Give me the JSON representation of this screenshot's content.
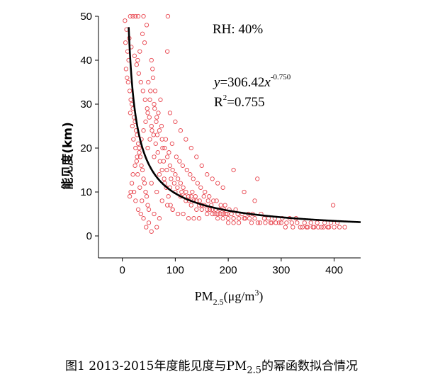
{
  "caption": {
    "prefix": "图1 2013-2015年度能见度与PM",
    "sub": "2.5",
    "suffix": "的幂函数拟合情况"
  },
  "chart_data": {
    "type": "scatter",
    "xlim": [
      -45,
      450
    ],
    "ylim": [
      -5,
      50
    ],
    "xticks": [
      0,
      100,
      200,
      300,
      400
    ],
    "yticks": [
      0,
      10,
      20,
      30,
      40,
      50
    ],
    "xlabel": {
      "main": "PM",
      "sub": "2.5",
      "unit": "(μg/m",
      "sup": "3",
      "close": ")"
    },
    "ylabel": "能见度(km)",
    "marker_color": "#e8454e",
    "fit_color": "#000000",
    "annotations": {
      "rh": "RH: 40%",
      "eq_y": "y",
      "eq_body": "=306.42",
      "eq_x": "x",
      "eq_exp": "-0.750",
      "r2_r": "R",
      "r2_sup": "2",
      "r2_val": "=0.755"
    },
    "fit": {
      "coefficient": 306.42,
      "exponent": -0.75,
      "x_range": [
        9,
        450
      ]
    },
    "points": [
      [
        5,
        49
      ],
      [
        8,
        47
      ],
      [
        6,
        44
      ],
      [
        10,
        42
      ],
      [
        12,
        40
      ],
      [
        7,
        38
      ],
      [
        9,
        36
      ],
      [
        11,
        35
      ],
      [
        14,
        33
      ],
      [
        16,
        31
      ],
      [
        18,
        30
      ],
      [
        20,
        29
      ],
      [
        15,
        28
      ],
      [
        22,
        27
      ],
      [
        24,
        26
      ],
      [
        19,
        25
      ],
      [
        26,
        24
      ],
      [
        28,
        23
      ],
      [
        21,
        22
      ],
      [
        30,
        21
      ],
      [
        25,
        20
      ],
      [
        32,
        19
      ],
      [
        34,
        18
      ],
      [
        27,
        17
      ],
      [
        36,
        16
      ],
      [
        38,
        15
      ],
      [
        29,
        14
      ],
      [
        40,
        13
      ],
      [
        42,
        12
      ],
      [
        33,
        11
      ],
      [
        44,
        10
      ],
      [
        46,
        9
      ],
      [
        37,
        8
      ],
      [
        48,
        7
      ],
      [
        50,
        6
      ],
      [
        13,
        45
      ],
      [
        17,
        43
      ],
      [
        23,
        41
      ],
      [
        27,
        39
      ],
      [
        31,
        37
      ],
      [
        35,
        35
      ],
      [
        39,
        33
      ],
      [
        43,
        31
      ],
      [
        47,
        29
      ],
      [
        51,
        27
      ],
      [
        55,
        25
      ],
      [
        59,
        23
      ],
      [
        63,
        21
      ],
      [
        67,
        19
      ],
      [
        71,
        17
      ],
      [
        75,
        15
      ],
      [
        79,
        13
      ],
      [
        83,
        11
      ],
      [
        87,
        9
      ],
      [
        91,
        7
      ],
      [
        95,
        6
      ],
      [
        60,
        30
      ],
      [
        65,
        27
      ],
      [
        70,
        24
      ],
      [
        75,
        22
      ],
      [
        80,
        20
      ],
      [
        85,
        18
      ],
      [
        90,
        16
      ],
      [
        95,
        15
      ],
      [
        100,
        14
      ],
      [
        105,
        13
      ],
      [
        110,
        12
      ],
      [
        115,
        11
      ],
      [
        120,
        10
      ],
      [
        125,
        9
      ],
      [
        130,
        9
      ],
      [
        135,
        8
      ],
      [
        140,
        8
      ],
      [
        145,
        7
      ],
      [
        150,
        7
      ],
      [
        155,
        7
      ],
      [
        160,
        6
      ],
      [
        165,
        6
      ],
      [
        170,
        6
      ],
      [
        175,
        5
      ],
      [
        180,
        5
      ],
      [
        185,
        5
      ],
      [
        190,
        5
      ],
      [
        195,
        5
      ],
      [
        200,
        4
      ],
      [
        210,
        4
      ],
      [
        220,
        4
      ],
      [
        230,
        4
      ],
      [
        240,
        4
      ],
      [
        250,
        4
      ],
      [
        260,
        3
      ],
      [
        270,
        3
      ],
      [
        280,
        3
      ],
      [
        290,
        3
      ],
      [
        300,
        3
      ],
      [
        310,
        3
      ],
      [
        320,
        3
      ],
      [
        330,
        3
      ],
      [
        340,
        2
      ],
      [
        350,
        2
      ],
      [
        360,
        2
      ],
      [
        370,
        2
      ],
      [
        380,
        2
      ],
      [
        390,
        2
      ],
      [
        400,
        2
      ],
      [
        410,
        2
      ],
      [
        420,
        2
      ],
      [
        398,
        7
      ],
      [
        210,
        15
      ],
      [
        255,
        13
      ],
      [
        230,
        10
      ],
      [
        250,
        8
      ],
      [
        180,
        12
      ],
      [
        190,
        11
      ],
      [
        160,
        14
      ],
      [
        170,
        13
      ],
      [
        150,
        16
      ],
      [
        140,
        18
      ],
      [
        130,
        20
      ],
      [
        120,
        22
      ],
      [
        110,
        24
      ],
      [
        100,
        26
      ],
      [
        90,
        28
      ],
      [
        85,
        42
      ],
      [
        15,
        50
      ],
      [
        20,
        50
      ],
      [
        25,
        50
      ],
      [
        30,
        50
      ],
      [
        40,
        50
      ],
      [
        46,
        48
      ],
      [
        86,
        50
      ],
      [
        55,
        40
      ],
      [
        58,
        36
      ],
      [
        62,
        33
      ],
      [
        52,
        31
      ],
      [
        48,
        28
      ],
      [
        44,
        26
      ],
      [
        40,
        24
      ],
      [
        36,
        22
      ],
      [
        32,
        20
      ],
      [
        28,
        18
      ],
      [
        24,
        16
      ],
      [
        20,
        14
      ],
      [
        18,
        12
      ],
      [
        16,
        10
      ],
      [
        14,
        9
      ],
      [
        60,
        18
      ],
      [
        70,
        14
      ],
      [
        80,
        12
      ],
      [
        90,
        11
      ],
      [
        100,
        10
      ],
      [
        110,
        9
      ],
      [
        120,
        8
      ],
      [
        130,
        7
      ],
      [
        140,
        6
      ],
      [
        150,
        6
      ],
      [
        160,
        5
      ],
      [
        170,
        5
      ],
      [
        180,
        4
      ],
      [
        190,
        4
      ],
      [
        200,
        3
      ],
      [
        210,
        3
      ],
      [
        220,
        3
      ],
      [
        55,
        12
      ],
      [
        65,
        10
      ],
      [
        75,
        8
      ],
      [
        85,
        7
      ],
      [
        95,
        6
      ],
      [
        105,
        5
      ],
      [
        115,
        5
      ],
      [
        125,
        4
      ],
      [
        135,
        4
      ],
      [
        145,
        4
      ],
      [
        60,
        5
      ],
      [
        70,
        4
      ],
      [
        50,
        3
      ],
      [
        65,
        2
      ],
      [
        55,
        1
      ],
      [
        45,
        2
      ],
      [
        40,
        4
      ],
      [
        35,
        5
      ],
      [
        30,
        6
      ],
      [
        25,
        8
      ],
      [
        22,
        10
      ],
      [
        48,
        20
      ],
      [
        52,
        22
      ],
      [
        56,
        24
      ],
      [
        64,
        26
      ],
      [
        68,
        28
      ],
      [
        72,
        31
      ],
      [
        76,
        20
      ],
      [
        82,
        22
      ],
      [
        88,
        19
      ],
      [
        94,
        21
      ],
      [
        102,
        18
      ],
      [
        108,
        17
      ],
      [
        114,
        16
      ],
      [
        122,
        15
      ],
      [
        128,
        14
      ],
      [
        134,
        13
      ],
      [
        142,
        12
      ],
      [
        148,
        11
      ],
      [
        156,
        10
      ],
      [
        164,
        9
      ],
      [
        172,
        8
      ],
      [
        178,
        8
      ],
      [
        186,
        7
      ],
      [
        194,
        7
      ],
      [
        202,
        6
      ],
      [
        214,
        6
      ],
      [
        226,
        5
      ],
      [
        238,
        5
      ],
      [
        246,
        5
      ],
      [
        262,
        5
      ],
      [
        276,
        4
      ],
      [
        288,
        4
      ],
      [
        302,
        4
      ],
      [
        316,
        4
      ],
      [
        328,
        4
      ],
      [
        344,
        3
      ],
      [
        356,
        3
      ],
      [
        368,
        3
      ],
      [
        382,
        3
      ],
      [
        394,
        3
      ],
      [
        406,
        3
      ],
      [
        38,
        46
      ],
      [
        42,
        44
      ],
      [
        33,
        42
      ],
      [
        29,
        40
      ],
      [
        57,
        38
      ],
      [
        49,
        35
      ],
      [
        53,
        33
      ],
      [
        61,
        29
      ],
      [
        66,
        23
      ],
      [
        74,
        25
      ],
      [
        78,
        17
      ],
      [
        84,
        15
      ],
      [
        92,
        13
      ],
      [
        98,
        12
      ],
      [
        104,
        11
      ],
      [
        112,
        10
      ],
      [
        118,
        9
      ],
      [
        126,
        8
      ],
      [
        132,
        10
      ],
      [
        138,
        9
      ],
      [
        146,
        8
      ],
      [
        154,
        9
      ],
      [
        162,
        8
      ],
      [
        168,
        7
      ],
      [
        176,
        6
      ],
      [
        184,
        6
      ],
      [
        192,
        6
      ],
      [
        198,
        5
      ],
      [
        206,
        5
      ],
      [
        218,
        5
      ],
      [
        232,
        4
      ],
      [
        244,
        3
      ],
      [
        256,
        3
      ],
      [
        268,
        4
      ],
      [
        282,
        3
      ],
      [
        296,
        3
      ],
      [
        308,
        2
      ],
      [
        322,
        2
      ],
      [
        336,
        2
      ],
      [
        348,
        2
      ],
      [
        362,
        2
      ],
      [
        376,
        2
      ],
      [
        388,
        2
      ]
    ]
  }
}
